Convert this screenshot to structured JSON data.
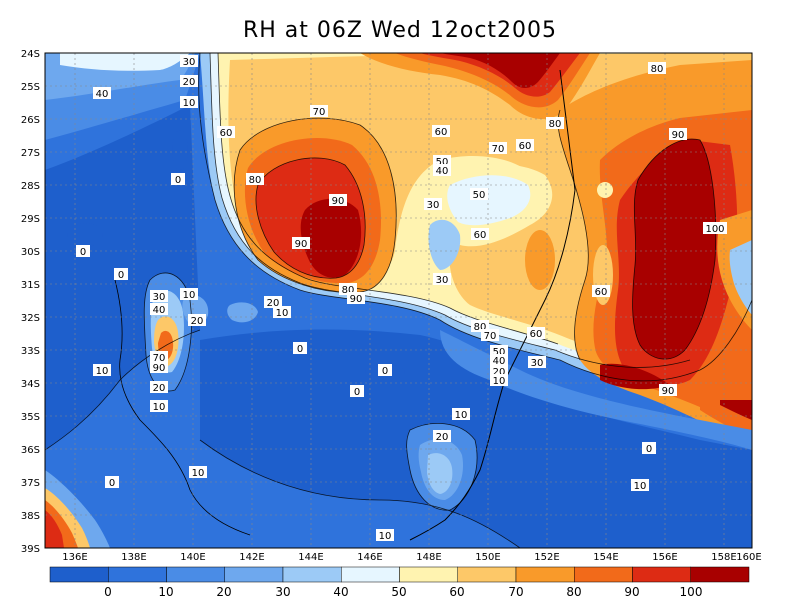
{
  "title": "RH at 06Z Wed 12oct2005",
  "lat_labels": [
    "24S",
    "25S",
    "26S",
    "27S",
    "28S",
    "29S",
    "30S",
    "31S",
    "32S",
    "33S",
    "34S",
    "35S",
    "36S",
    "37S",
    "38S",
    "39S"
  ],
  "lon_labels": [
    "136E",
    "138E",
    "140E",
    "142E",
    "144E",
    "146E",
    "148E",
    "150E",
    "152E",
    "154E",
    "156E",
    "158E",
    "160E"
  ],
  "colorbar": {
    "labels": [
      "0",
      "10",
      "20",
      "30",
      "40",
      "50",
      "60",
      "70",
      "80",
      "90",
      "100"
    ],
    "colors": [
      "#1e5fcc",
      "#2f73dc",
      "#4a8ce6",
      "#6ea8ee",
      "#9ccaf6",
      "#e6f6ff",
      "#fff3b0",
      "#fdc868",
      "#f99a2a",
      "#f26a1a",
      "#dd2b14",
      "#a80000"
    ]
  },
  "contour_labels": [
    {
      "v": "30"
    },
    {
      "v": "20"
    },
    {
      "v": "10"
    },
    {
      "v": "40"
    },
    {
      "v": "60"
    },
    {
      "v": "70"
    },
    {
      "v": "80"
    },
    {
      "v": "90"
    },
    {
      "v": "0"
    },
    {
      "v": "90"
    },
    {
      "v": "80"
    },
    {
      "v": "90"
    },
    {
      "v": "50"
    },
    {
      "v": "40"
    },
    {
      "v": "50"
    },
    {
      "v": "30"
    },
    {
      "v": "60"
    },
    {
      "v": "70"
    },
    {
      "v": "60"
    },
    {
      "v": "80"
    },
    {
      "v": "60"
    },
    {
      "v": "80"
    },
    {
      "v": "90"
    },
    {
      "v": "100"
    },
    {
      "v": "60"
    },
    {
      "v": "0"
    },
    {
      "v": "0"
    },
    {
      "v": "30"
    },
    {
      "v": "10"
    },
    {
      "v": "20"
    },
    {
      "v": "40"
    },
    {
      "v": "20"
    },
    {
      "v": "10"
    },
    {
      "v": "70"
    },
    {
      "v": "90"
    },
    {
      "v": "20"
    },
    {
      "v": "10"
    },
    {
      "v": "10"
    },
    {
      "v": "0"
    },
    {
      "v": "0"
    },
    {
      "v": "0"
    },
    {
      "v": "30"
    },
    {
      "v": "80"
    },
    {
      "v": "70"
    },
    {
      "v": "60"
    },
    {
      "v": "50"
    },
    {
      "v": "40"
    },
    {
      "v": "30"
    },
    {
      "v": "20"
    },
    {
      "v": "10"
    },
    {
      "v": "90"
    },
    {
      "v": "10"
    },
    {
      "v": "20"
    },
    {
      "v": "0"
    },
    {
      "v": "10"
    },
    {
      "v": "0"
    },
    {
      "v": "10"
    },
    {
      "v": "10"
    }
  ]
}
